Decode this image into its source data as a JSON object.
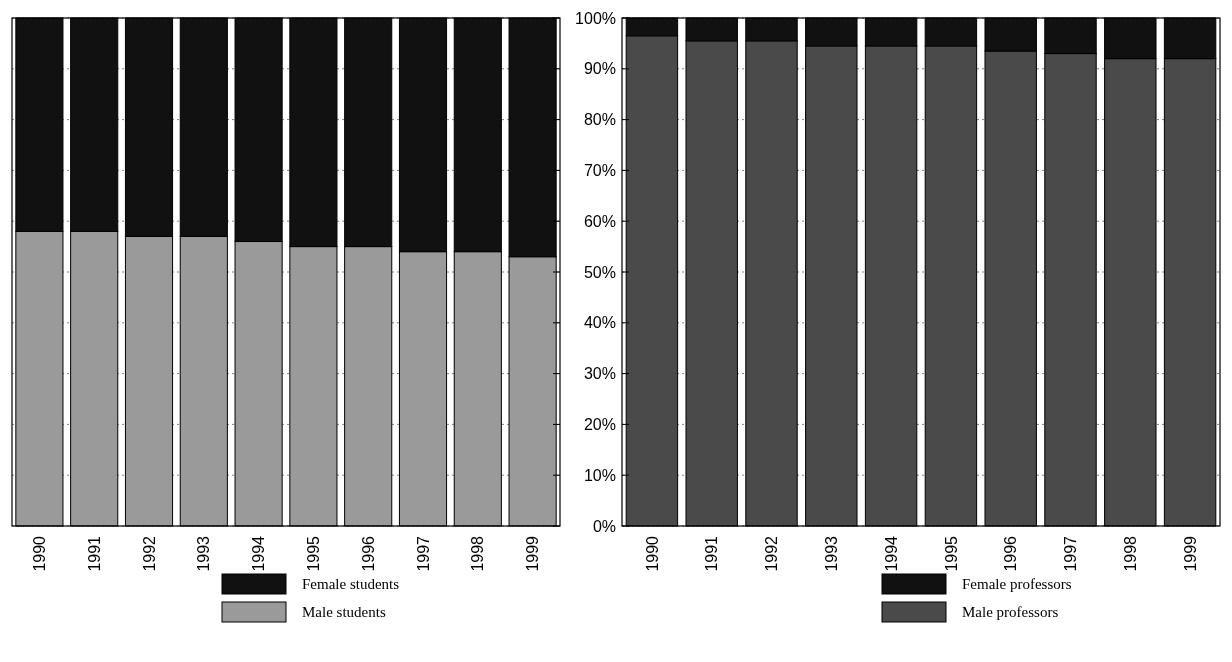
{
  "chart_data": [
    {
      "type": "bar",
      "stacked": true,
      "categories": [
        "1990",
        "1991",
        "1992",
        "1993",
        "1994",
        "1995",
        "1996",
        "1997",
        "1998",
        "1999"
      ],
      "series": [
        {
          "name": "Male students",
          "color": "#9a9a9a",
          "values": [
            58,
            58,
            57,
            57,
            56,
            55,
            55,
            54,
            54,
            53
          ]
        },
        {
          "name": "Female students",
          "color": "#111111",
          "values": [
            42,
            42,
            43,
            43,
            44,
            45,
            45,
            46,
            46,
            47
          ]
        }
      ],
      "ylim": [
        0,
        100
      ],
      "yticks": [
        {
          "value": 0,
          "label": null
        },
        {
          "value": 10,
          "label": null
        },
        {
          "value": 20,
          "label": null
        },
        {
          "value": 30,
          "label": null
        },
        {
          "value": 40,
          "label": null
        },
        {
          "value": 50,
          "label": null
        },
        {
          "value": 60,
          "label": null
        },
        {
          "value": 70,
          "label": null
        },
        {
          "value": 80,
          "label": null
        },
        {
          "value": 90,
          "label": null
        },
        {
          "value": 100,
          "label": null
        }
      ],
      "grid": "y",
      "legend": "bottom",
      "tick_labels": "x"
    },
    {
      "type": "bar",
      "stacked": true,
      "categories": [
        "1990",
        "1991",
        "1992",
        "1993",
        "1994",
        "1995",
        "1996",
        "1997",
        "1998",
        "1999"
      ],
      "series": [
        {
          "name": "Male professors",
          "color": "#4a4a4a",
          "values": [
            96.5,
            95.5,
            95.5,
            94.5,
            94.5,
            94.5,
            93.5,
            93,
            92,
            92
          ]
        },
        {
          "name": "Female professors",
          "color": "#111111",
          "values": [
            3.5,
            4.5,
            4.5,
            5.5,
            5.5,
            5.5,
            6.5,
            7,
            8,
            8
          ]
        }
      ],
      "ylim": [
        0,
        100
      ],
      "yticks": [
        {
          "value": 0,
          "label": "0%"
        },
        {
          "value": 10,
          "label": "10%"
        },
        {
          "value": 20,
          "label": "20%"
        },
        {
          "value": 30,
          "label": "30%"
        },
        {
          "value": 40,
          "label": "40%"
        },
        {
          "value": 50,
          "label": "50%"
        },
        {
          "value": 60,
          "label": "60%"
        },
        {
          "value": 70,
          "label": "70%"
        },
        {
          "value": 80,
          "label": "80%"
        },
        {
          "value": 90,
          "label": "90%"
        },
        {
          "value": 100,
          "label": "100%"
        }
      ],
      "grid": "y",
      "legend": "bottom"
    }
  ]
}
